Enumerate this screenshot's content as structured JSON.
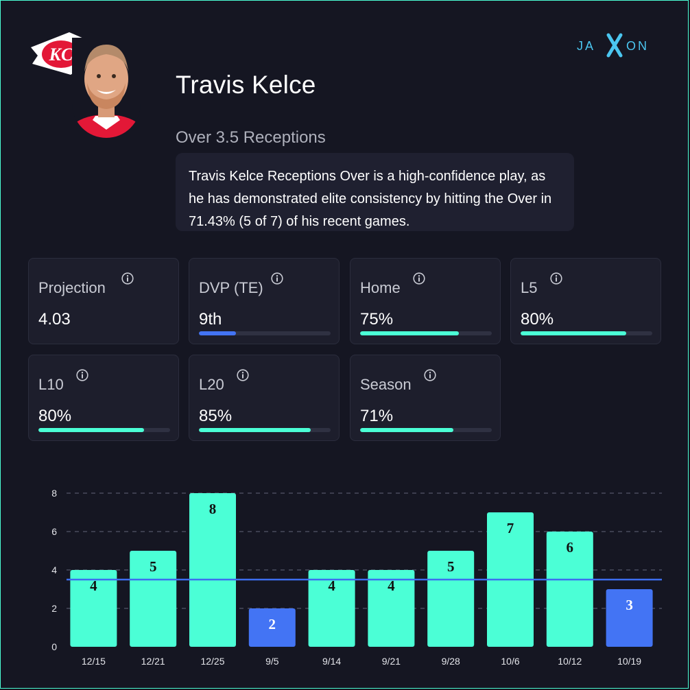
{
  "brand": {
    "name": "JAXON",
    "accent": "#4bc6f0"
  },
  "team": {
    "logo_text": "KC",
    "primary_color": "#e31837"
  },
  "player": {
    "name": "Travis Kelce"
  },
  "prop": {
    "title": "Over 3.5 Receptions",
    "summary": "Travis Kelce Receptions Over is a high-confidence play, as he has demonstrated elite consistency by hitting the Over in 71.43% (5 of 7) of his recent games."
  },
  "stats": [
    {
      "label": "Projection",
      "value": "4.03",
      "bar": null
    },
    {
      "label": "DVP (TE)",
      "value": "9th",
      "bar": 0.28,
      "color": "#4374f4"
    },
    {
      "label": "Home",
      "value": "75%",
      "bar": 0.75,
      "color": "#4bffd6"
    },
    {
      "label": "L5",
      "value": "80%",
      "bar": 0.8,
      "color": "#4bffd6"
    },
    {
      "label": "L10",
      "value": "80%",
      "bar": 0.8,
      "color": "#4bffd6"
    },
    {
      "label": "L20",
      "value": "85%",
      "bar": 0.85,
      "color": "#4bffd6"
    },
    {
      "label": "Season",
      "value": "71%",
      "bar": 0.71,
      "color": "#4bffd6"
    }
  ],
  "chart_data": {
    "type": "bar",
    "categories": [
      "12/15",
      "12/21",
      "12/25",
      "9/5",
      "9/14",
      "9/21",
      "9/28",
      "10/6",
      "10/12",
      "10/19"
    ],
    "values": [
      4,
      5,
      8,
      2,
      4,
      4,
      5,
      7,
      6,
      3
    ],
    "line": 3.5,
    "ylim": [
      0,
      8
    ],
    "yticks": [
      0,
      2,
      4,
      6,
      8
    ],
    "over_color": "#4bffd6",
    "under_color": "#4374f4",
    "line_color": "#3d6ef0",
    "title": "",
    "xlabel": "",
    "ylabel": ""
  }
}
